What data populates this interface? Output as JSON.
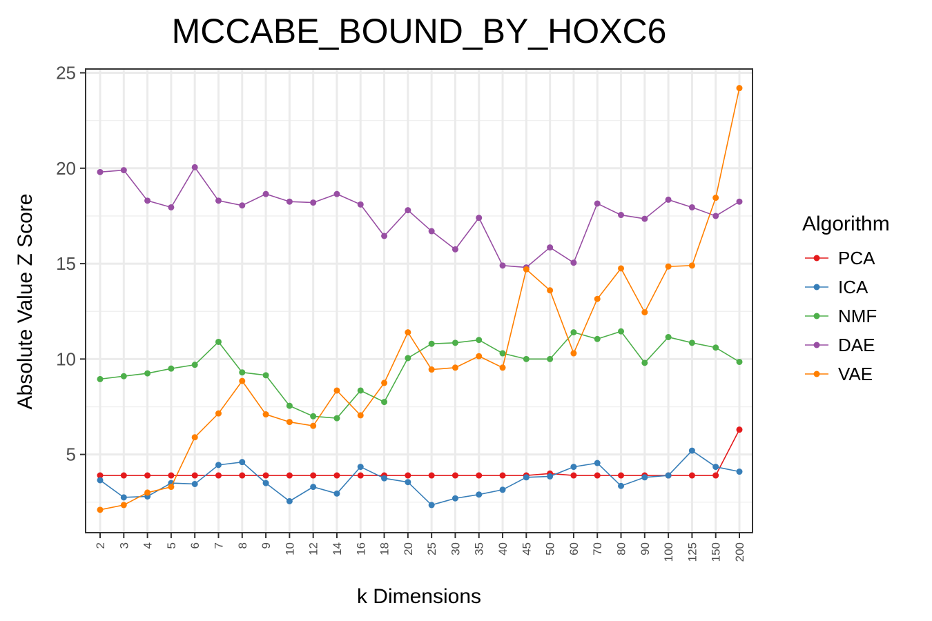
{
  "chart_data": {
    "type": "line",
    "title": "MCCABE_BOUND_BY_HOXC6",
    "xlabel": "k Dimensions",
    "ylabel": "Absolute Value Z Score",
    "categories": [
      "2",
      "3",
      "4",
      "5",
      "6",
      "7",
      "8",
      "9",
      "10",
      "12",
      "14",
      "16",
      "18",
      "20",
      "25",
      "30",
      "35",
      "40",
      "45",
      "50",
      "60",
      "70",
      "80",
      "90",
      "100",
      "125",
      "150",
      "200"
    ],
    "yticks": [
      5,
      10,
      15,
      20,
      25
    ],
    "ylim": [
      0.9,
      25.2
    ],
    "grid": true,
    "legend": {
      "title": "Algorithm",
      "placement": "right"
    },
    "series": [
      {
        "name": "PCA",
        "color": "#e41a1c",
        "values": [
          3.9,
          3.9,
          3.9,
          3.9,
          3.9,
          3.9,
          3.9,
          3.9,
          3.9,
          3.9,
          3.9,
          3.9,
          3.9,
          3.9,
          3.9,
          3.9,
          3.9,
          3.9,
          3.9,
          4.0,
          3.9,
          3.9,
          3.9,
          3.9,
          3.9,
          3.9,
          3.9,
          6.3
        ]
      },
      {
        "name": "ICA",
        "color": "#377eb8",
        "values": [
          3.65,
          2.75,
          2.8,
          3.5,
          3.45,
          4.45,
          4.6,
          3.5,
          2.55,
          3.3,
          2.95,
          4.35,
          3.75,
          3.55,
          2.35,
          2.7,
          2.9,
          3.15,
          3.8,
          3.85,
          4.35,
          4.55,
          3.35,
          3.8,
          3.9,
          5.2,
          4.35,
          4.1
        ]
      },
      {
        "name": "NMF",
        "color": "#4daf4a",
        "values": [
          8.95,
          9.1,
          9.25,
          9.5,
          9.7,
          10.9,
          9.3,
          9.15,
          7.55,
          7.0,
          6.9,
          8.35,
          7.75,
          10.05,
          10.8,
          10.85,
          11.0,
          10.3,
          10.0,
          10.0,
          11.4,
          11.05,
          11.45,
          9.8,
          11.15,
          10.85,
          10.6,
          9.85
        ]
      },
      {
        "name": "DAE",
        "color": "#984ea3",
        "values": [
          19.8,
          19.9,
          18.3,
          17.95,
          20.05,
          18.3,
          18.05,
          18.65,
          18.25,
          18.2,
          18.65,
          18.1,
          16.45,
          17.8,
          16.7,
          15.75,
          17.4,
          14.9,
          14.8,
          15.85,
          15.05,
          18.15,
          17.55,
          17.35,
          18.35,
          17.95,
          17.5,
          18.25
        ]
      },
      {
        "name": "VAE",
        "color": "#ff7f00",
        "values": [
          2.1,
          2.35,
          3.0,
          3.3,
          5.9,
          7.15,
          8.85,
          7.1,
          6.7,
          6.5,
          8.35,
          7.05,
          8.75,
          11.4,
          9.45,
          9.55,
          10.15,
          9.55,
          14.7,
          13.6,
          10.3,
          13.15,
          14.75,
          12.45,
          14.85,
          14.9,
          18.45,
          24.2
        ]
      }
    ]
  }
}
